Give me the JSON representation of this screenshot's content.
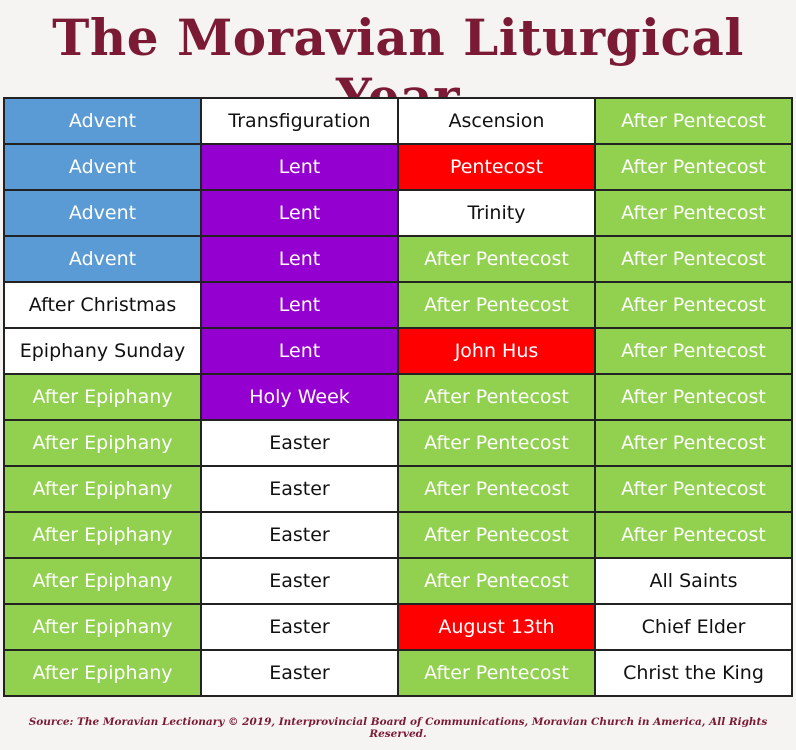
{
  "title": "The Moravian Liturgical Year",
  "colors": {
    "blue": "#5b9bd5",
    "purple": "#9400d0",
    "red": "#ff0000",
    "green": "#92d050",
    "white": "#ffffff",
    "title": "#7b1a34"
  },
  "rows": [
    [
      {
        "t": "Advent",
        "c": "blue"
      },
      {
        "t": "Transfiguration",
        "c": "white"
      },
      {
        "t": "Ascension",
        "c": "white"
      },
      {
        "t": "After Pentecost",
        "c": "green"
      }
    ],
    [
      {
        "t": "Advent",
        "c": "blue"
      },
      {
        "t": "Lent",
        "c": "purple"
      },
      {
        "t": "Pentecost",
        "c": "red"
      },
      {
        "t": "After Pentecost",
        "c": "green"
      }
    ],
    [
      {
        "t": "Advent",
        "c": "blue"
      },
      {
        "t": "Lent",
        "c": "purple"
      },
      {
        "t": "Trinity",
        "c": "white"
      },
      {
        "t": "After Pentecost",
        "c": "green"
      }
    ],
    [
      {
        "t": "Advent",
        "c": "blue"
      },
      {
        "t": "Lent",
        "c": "purple"
      },
      {
        "t": "After Pentecost",
        "c": "green"
      },
      {
        "t": "After Pentecost",
        "c": "green"
      }
    ],
    [
      {
        "t": "After Christmas",
        "c": "white"
      },
      {
        "t": "Lent",
        "c": "purple"
      },
      {
        "t": "After Pentecost",
        "c": "green"
      },
      {
        "t": "After Pentecost",
        "c": "green"
      }
    ],
    [
      {
        "t": "Epiphany Sunday",
        "c": "white"
      },
      {
        "t": "Lent",
        "c": "purple"
      },
      {
        "t": "John Hus",
        "c": "red"
      },
      {
        "t": "After Pentecost",
        "c": "green"
      }
    ],
    [
      {
        "t": "After Epiphany",
        "c": "green"
      },
      {
        "t": "Holy Week",
        "c": "purple"
      },
      {
        "t": "After Pentecost",
        "c": "green"
      },
      {
        "t": "After Pentecost",
        "c": "green"
      }
    ],
    [
      {
        "t": "After Epiphany",
        "c": "green"
      },
      {
        "t": "Easter",
        "c": "white"
      },
      {
        "t": "After Pentecost",
        "c": "green"
      },
      {
        "t": "After Pentecost",
        "c": "green"
      }
    ],
    [
      {
        "t": "After Epiphany",
        "c": "green"
      },
      {
        "t": "Easter",
        "c": "white"
      },
      {
        "t": "After Pentecost",
        "c": "green"
      },
      {
        "t": "After Pentecost",
        "c": "green"
      }
    ],
    [
      {
        "t": "After Epiphany",
        "c": "green"
      },
      {
        "t": "Easter",
        "c": "white"
      },
      {
        "t": "After Pentecost",
        "c": "green"
      },
      {
        "t": "After Pentecost",
        "c": "green"
      }
    ],
    [
      {
        "t": "After Epiphany",
        "c": "green"
      },
      {
        "t": "Easter",
        "c": "white"
      },
      {
        "t": "After Pentecost",
        "c": "green"
      },
      {
        "t": "All Saints",
        "c": "white"
      }
    ],
    [
      {
        "t": "After Epiphany",
        "c": "green"
      },
      {
        "t": "Easter",
        "c": "white"
      },
      {
        "t": "August 13th",
        "c": "red"
      },
      {
        "t": "Chief Elder",
        "c": "white"
      }
    ],
    [
      {
        "t": "After Epiphany",
        "c": "green"
      },
      {
        "t": "Easter",
        "c": "white"
      },
      {
        "t": "After Pentecost",
        "c": "green"
      },
      {
        "t": "Christ the King",
        "c": "white"
      }
    ]
  ],
  "footer": "Source: The Moravian Lectionary © 2019, Interprovincial Board of Communications, Moravian Church in America, All Rights Reserved."
}
